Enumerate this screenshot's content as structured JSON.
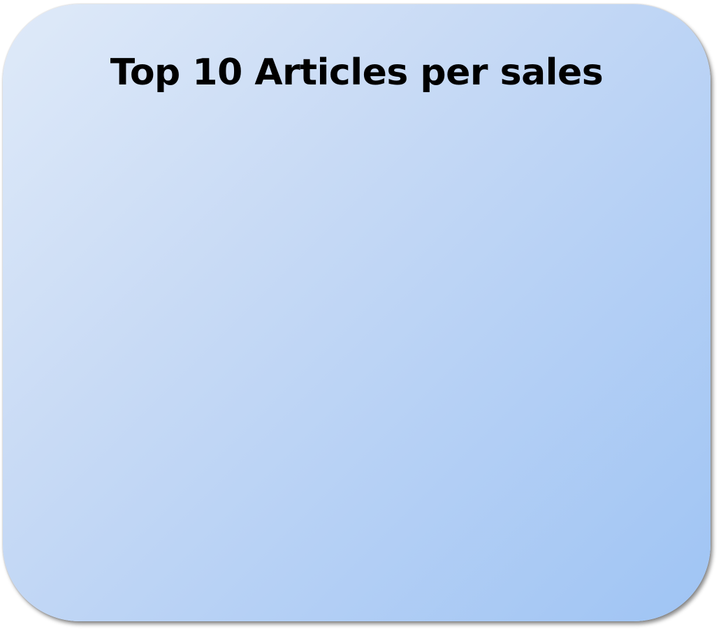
{
  "panel": {
    "title": "Top 10 Articles per sales",
    "gradient_colors": [
      "#dfeaf9",
      "#c9dbf5",
      "#b5d0f5",
      "#9fc4f4"
    ]
  }
}
